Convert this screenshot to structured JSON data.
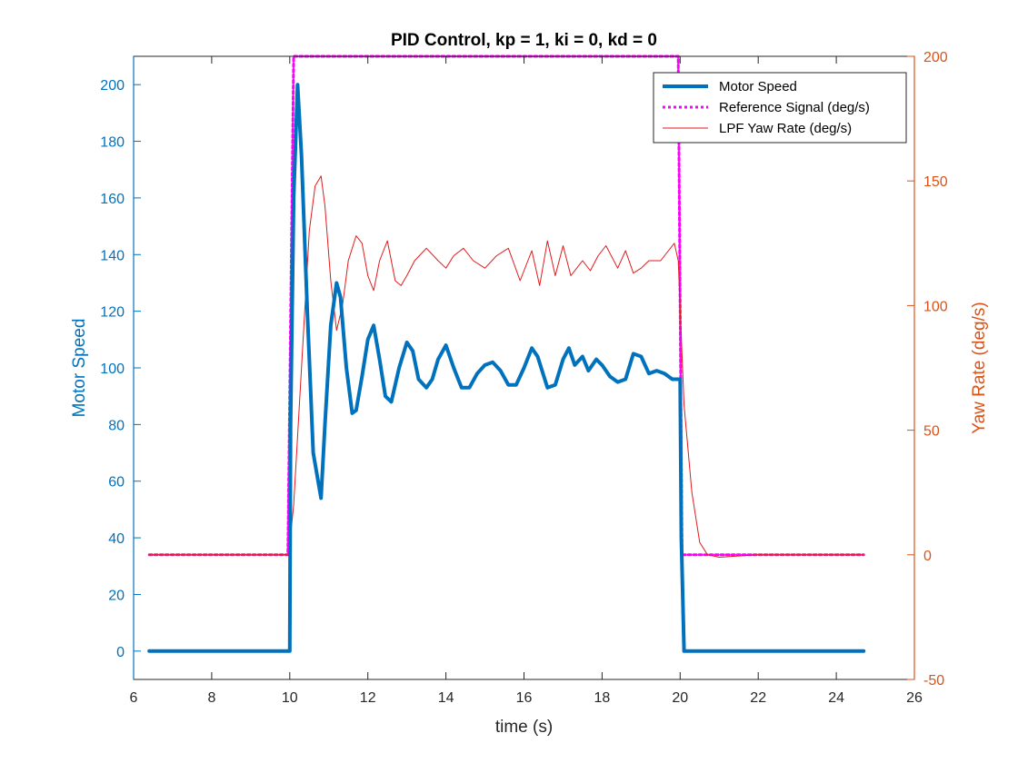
{
  "chart_data": {
    "type": "line",
    "title": "PID Control, kp = 1, ki = 0, kd = 0",
    "xlabel": "time (s)",
    "ylabel_left": "Motor Speed",
    "ylabel_right": "Yaw Rate (deg/s)",
    "xlim": [
      6,
      26
    ],
    "ylim_left": [
      -10,
      210
    ],
    "ylim_right": [
      -50,
      200
    ],
    "xticks": [
      "6",
      "8",
      "10",
      "12",
      "14",
      "16",
      "18",
      "20",
      "22",
      "24",
      "26"
    ],
    "yticks_left": [
      "0",
      "20",
      "40",
      "60",
      "80",
      "100",
      "120",
      "140",
      "160",
      "180",
      "200"
    ],
    "yticks_right": [
      "-50",
      "0",
      "50",
      "100",
      "150",
      "200"
    ],
    "grid": false,
    "legend_position": "top-right",
    "colors": {
      "left_axis": "#0072BD",
      "right_axis": "#D95319",
      "motor": "#0072BD",
      "reference": "#FF00FF",
      "yaw": "#E31A1C"
    },
    "series": [
      {
        "name": "Motor Speed",
        "axis": "left",
        "style": "solid-thick",
        "x": [
          6.4,
          10.0,
          10.02,
          10.1,
          10.2,
          10.3,
          10.45,
          10.6,
          10.8,
          10.9,
          11.05,
          11.2,
          11.3,
          11.45,
          11.6,
          11.7,
          11.85,
          12.0,
          12.15,
          12.3,
          12.45,
          12.6,
          12.8,
          13.0,
          13.15,
          13.3,
          13.5,
          13.65,
          13.8,
          14.0,
          14.2,
          14.4,
          14.6,
          14.8,
          15.0,
          15.2,
          15.4,
          15.6,
          15.8,
          16.0,
          16.2,
          16.35,
          16.6,
          16.8,
          17.0,
          17.15,
          17.3,
          17.5,
          17.65,
          17.85,
          18.0,
          18.2,
          18.4,
          18.6,
          18.8,
          19.0,
          19.2,
          19.4,
          19.6,
          19.8,
          19.9,
          20.0,
          20.03,
          20.1,
          24.7
        ],
        "values": [
          0,
          0,
          80,
          160,
          200,
          175,
          120,
          70,
          54,
          80,
          115,
          130,
          125,
          100,
          84,
          85,
          97,
          110,
          115,
          103,
          90,
          88,
          100,
          109,
          106,
          96,
          93,
          96,
          103,
          108,
          100,
          93,
          93,
          98,
          101,
          102,
          99,
          94,
          94,
          100,
          107,
          104,
          93,
          94,
          103,
          107,
          101,
          104,
          99,
          103,
          101,
          97,
          95,
          96,
          105,
          104,
          98,
          99,
          98,
          96,
          96,
          96,
          40,
          0,
          0
        ]
      },
      {
        "name": "Reference Signal (deg/s)",
        "axis": "right",
        "style": "dotted",
        "x": [
          6.4,
          9.95,
          10.1,
          19.95,
          20.05,
          24.7
        ],
        "values": [
          0,
          0,
          200,
          200,
          0,
          0
        ]
      },
      {
        "name": "LPF Yaw Rate (deg/s)",
        "axis": "right",
        "style": "solid-thin",
        "x": [
          6.4,
          9.97,
          10.1,
          10.3,
          10.5,
          10.65,
          10.8,
          10.9,
          11.05,
          11.2,
          11.35,
          11.5,
          11.7,
          11.85,
          12.0,
          12.15,
          12.3,
          12.5,
          12.7,
          12.85,
          13.0,
          13.2,
          13.5,
          13.8,
          14.0,
          14.2,
          14.45,
          14.7,
          15.0,
          15.3,
          15.6,
          15.9,
          16.2,
          16.4,
          16.6,
          16.8,
          17.0,
          17.2,
          17.5,
          17.7,
          17.9,
          18.1,
          18.4,
          18.6,
          18.8,
          19.0,
          19.2,
          19.5,
          19.7,
          19.85,
          19.95,
          20.1,
          20.3,
          20.5,
          20.7,
          21.0,
          22.0,
          24.7
        ],
        "values": [
          0,
          0,
          20,
          75,
          130,
          148,
          152,
          140,
          110,
          90,
          100,
          118,
          128,
          125,
          112,
          106,
          118,
          126,
          110,
          108,
          112,
          118,
          123,
          118,
          115,
          120,
          123,
          118,
          115,
          120,
          123,
          110,
          122,
          108,
          126,
          112,
          124,
          112,
          118,
          114,
          120,
          124,
          115,
          122,
          113,
          115,
          118,
          118,
          122,
          125,
          118,
          60,
          25,
          5,
          0,
          -1,
          0,
          0
        ]
      }
    ]
  }
}
